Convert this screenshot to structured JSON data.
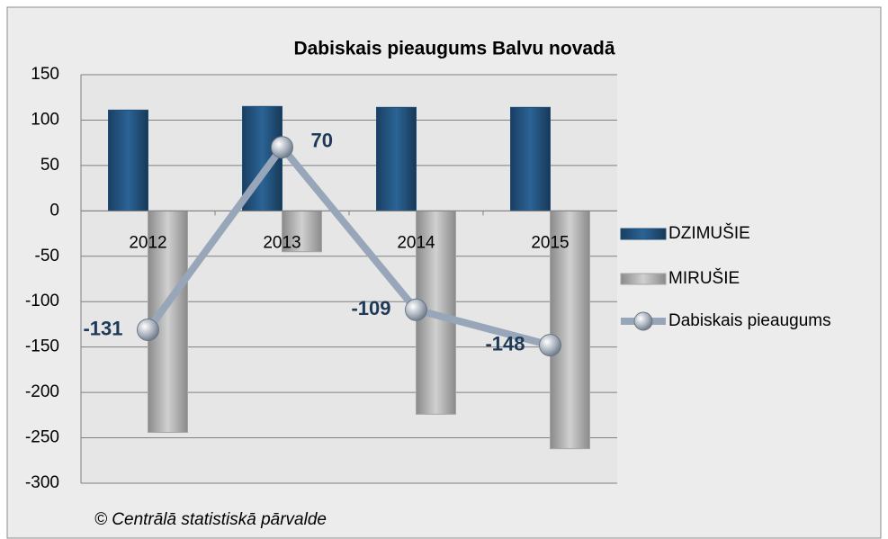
{
  "chart_data": {
    "type": "bar-line",
    "title": "Dabiskais  pieaugums Balvu novadā",
    "source": "© Centrālā statistiskā pārvalde",
    "categories": [
      "2012",
      "2013",
      "2014",
      "2015"
    ],
    "series": [
      {
        "name": "DZIMUŠIE",
        "type": "bar",
        "color": "#1f4e79",
        "values": [
          111,
          115,
          114,
          114
        ]
      },
      {
        "name": "MIRUŠIE",
        "type": "bar",
        "color": "#a6a6a6",
        "values": [
          -244,
          -45,
          -224,
          -262
        ]
      },
      {
        "name": "Dabiskais pieaugums",
        "type": "line",
        "color": "#97a6b8",
        "values": [
          -131,
          70,
          -109,
          -148
        ]
      }
    ],
    "ylim": [
      -300,
      150
    ],
    "yticks": [
      -300,
      -250,
      -200,
      -150,
      -100,
      -50,
      0,
      50,
      100,
      150
    ],
    "grid": true,
    "legend": "right"
  }
}
